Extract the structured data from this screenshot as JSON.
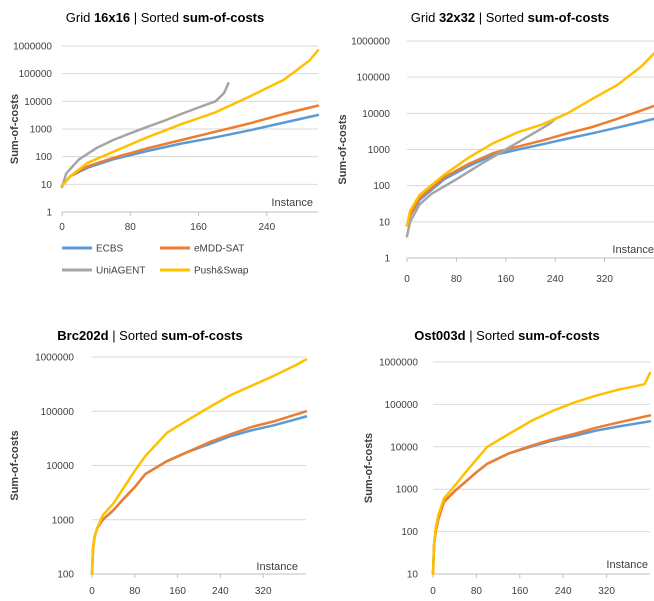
{
  "series_colors": {
    "ECBS": "#5B9BD5",
    "eMDD-SAT": "#ED7D31",
    "UniAGENT": "#A5A5A5",
    "Push&Swap": "#FFC000"
  },
  "y_axis_label": "Sum-of-costs",
  "x_axis_label": "Instance",
  "legend": {
    "position": "below-first-chart",
    "entries": [
      "ECBS",
      "eMDD-SAT",
      "UniAGENT",
      "Push&Swap"
    ]
  },
  "chart_data": [
    {
      "type": "line",
      "title_plain_1": "Grid ",
      "title_bold_1": "16x16",
      "title_plain_2": " | Sorted ",
      "title_bold_2": "sum-of-costs",
      "xlabel": "Instance",
      "ylabel": "Sum-of-costs",
      "yscale": "log",
      "ylim": [
        1,
        1000000
      ],
      "yticks": [
        "1",
        "10",
        "100",
        "1000",
        "10000",
        "100000",
        "1000000"
      ],
      "xlim": [
        0,
        300
      ],
      "xticks": [
        "0",
        "80",
        "160",
        "240"
      ],
      "xtick_values": [
        0,
        80,
        160,
        240
      ],
      "grid": "horizontal",
      "series": [
        {
          "name": "ECBS",
          "x": [
            0,
            10,
            30,
            60,
            100,
            140,
            180,
            220,
            260,
            300
          ],
          "y": [
            9,
            20,
            40,
            80,
            160,
            300,
            500,
            900,
            1700,
            3200
          ]
        },
        {
          "name": "eMDD-SAT",
          "x": [
            0,
            10,
            30,
            60,
            100,
            140,
            180,
            220,
            260,
            300
          ],
          "y": [
            9,
            20,
            45,
            90,
            200,
            400,
            800,
            1600,
            3500,
            7000
          ]
        },
        {
          "name": "UniAGENT",
          "x": [
            0,
            5,
            20,
            40,
            60,
            80,
            100,
            120,
            140,
            160,
            180,
            190,
            195
          ],
          "y": [
            8,
            25,
            80,
            200,
            400,
            700,
            1200,
            2000,
            3500,
            6000,
            10000,
            20000,
            45000
          ]
        },
        {
          "name": "Push&Swap",
          "x": [
            0,
            10,
            30,
            60,
            100,
            140,
            180,
            220,
            260,
            290,
            300
          ],
          "y": [
            9,
            20,
            60,
            150,
            500,
            1500,
            4000,
            15000,
            60000,
            300000,
            700000
          ]
        }
      ]
    },
    {
      "type": "line",
      "title_plain_1": "Grid ",
      "title_bold_1": "32x32",
      "title_plain_2": " | Sorted ",
      "title_bold_2": "sum-of-costs",
      "xlabel": "Instance",
      "ylabel": "Sum-of-costs",
      "yscale": "log",
      "ylim": [
        1,
        1000000
      ],
      "yticks": [
        "1",
        "10",
        "100",
        "1000",
        "10000",
        "100000",
        "1000000"
      ],
      "xlim": [
        0,
        400
      ],
      "xticks": [
        "0",
        "80",
        "160",
        "240",
        "320"
      ],
      "xtick_values": [
        0,
        80,
        160,
        240,
        320
      ],
      "grid": "horizontal",
      "series": [
        {
          "name": "ECBS",
          "x": [
            0,
            5,
            20,
            60,
            100,
            140,
            180,
            220,
            260,
            300,
            340,
            400
          ],
          "y": [
            8,
            15,
            40,
            150,
            350,
            700,
            1000,
            1400,
            2000,
            2800,
            4000,
            7000
          ]
        },
        {
          "name": "eMDD-SAT",
          "x": [
            0,
            5,
            20,
            60,
            100,
            140,
            180,
            220,
            260,
            300,
            340,
            400
          ],
          "y": [
            8,
            15,
            45,
            170,
            400,
            800,
            1200,
            1800,
            2800,
            4200,
            7000,
            16000
          ]
        },
        {
          "name": "UniAGENT",
          "x": [
            0,
            5,
            20,
            40,
            80,
            120,
            160,
            200,
            230,
            240
          ],
          "y": [
            4,
            10,
            30,
            60,
            150,
            400,
            1000,
            2500,
            5000,
            7000
          ]
        },
        {
          "name": "Push&Swap",
          "x": [
            0,
            5,
            20,
            60,
            100,
            140,
            180,
            220,
            260,
            300,
            340,
            380,
            400
          ],
          "y": [
            8,
            20,
            55,
            200,
            600,
            1500,
            3000,
            5000,
            10000,
            25000,
            60000,
            200000,
            450000
          ]
        }
      ]
    },
    {
      "type": "line",
      "title_plain_1": "",
      "title_bold_1": "Brc202d",
      "title_plain_2": " | Sorted ",
      "title_bold_2": "sum-of-costs",
      "xlabel": "Instance",
      "ylabel": "Sum-of-costs",
      "yscale": "log",
      "ylim": [
        100,
        1000000
      ],
      "yticks": [
        "100",
        "1000",
        "10000",
        "100000",
        "1000000"
      ],
      "xlim": [
        0,
        400
      ],
      "xticks": [
        "0",
        "80",
        "160",
        "240",
        "320"
      ],
      "xtick_values": [
        0,
        80,
        160,
        240,
        320
      ],
      "grid": "horizontal",
      "series": [
        {
          "name": "ECBS",
          "x": [
            0,
            2,
            5,
            10,
            20,
            40,
            60,
            80,
            100,
            140,
            180,
            220,
            260,
            300,
            340,
            400
          ],
          "y": [
            100,
            300,
            500,
            700,
            1000,
            1500,
            2500,
            4000,
            7000,
            12000,
            18000,
            25000,
            35000,
            45000,
            55000,
            80000
          ]
        },
        {
          "name": "eMDD-SAT",
          "x": [
            0,
            2,
            5,
            10,
            20,
            40,
            60,
            80,
            100,
            140,
            180,
            220,
            260,
            300,
            340,
            400
          ],
          "y": [
            100,
            300,
            500,
            700,
            1000,
            1500,
            2500,
            4000,
            7000,
            12000,
            18000,
            27000,
            38000,
            52000,
            65000,
            100000
          ]
        },
        {
          "name": "Push&Swap",
          "x": [
            0,
            2,
            5,
            10,
            20,
            40,
            60,
            80,
            100,
            140,
            180,
            220,
            260,
            300,
            340,
            380,
            400
          ],
          "y": [
            100,
            300,
            500,
            700,
            1200,
            2000,
            4000,
            8000,
            15000,
            40000,
            70000,
            120000,
            200000,
            300000,
            450000,
            700000,
            900000
          ]
        }
      ]
    },
    {
      "type": "line",
      "title_plain_1": "",
      "title_bold_1": "Ost003d",
      "title_plain_2": " | Sorted ",
      "title_bold_2": "sum-of-costs",
      "xlabel": "Instance",
      "ylabel": "Sum-of-costs",
      "yscale": "log",
      "ylim": [
        10,
        1000000
      ],
      "yticks": [
        "10",
        "100",
        "1000",
        "10000",
        "100000",
        "1000000"
      ],
      "xlim": [
        0,
        400
      ],
      "xticks": [
        "0",
        "80",
        "160",
        "240",
        "320"
      ],
      "xtick_values": [
        0,
        80,
        160,
        240,
        320
      ],
      "grid": "horizontal",
      "series": [
        {
          "name": "ECBS",
          "x": [
            0,
            2,
            5,
            10,
            20,
            40,
            60,
            80,
            100,
            140,
            180,
            220,
            260,
            300,
            340,
            400
          ],
          "y": [
            10,
            50,
            100,
            200,
            500,
            900,
            1500,
            2500,
            4000,
            7000,
            10000,
            14000,
            18000,
            24000,
            30000,
            40000
          ]
        },
        {
          "name": "eMDD-SAT",
          "x": [
            0,
            2,
            5,
            10,
            20,
            40,
            60,
            80,
            100,
            140,
            180,
            220,
            260,
            300,
            340,
            400
          ],
          "y": [
            10,
            50,
            100,
            200,
            500,
            900,
            1500,
            2500,
            4000,
            7000,
            10500,
            15000,
            20000,
            28000,
            37000,
            55000
          ]
        },
        {
          "name": "Push&Swap",
          "x": [
            0,
            2,
            5,
            10,
            20,
            40,
            60,
            80,
            100,
            140,
            180,
            220,
            260,
            300,
            340,
            390,
            400
          ],
          "y": [
            10,
            50,
            120,
            250,
            600,
            1200,
            2500,
            5000,
            10000,
            20000,
            40000,
            70000,
            110000,
            160000,
            220000,
            300000,
            550000
          ]
        }
      ]
    }
  ]
}
